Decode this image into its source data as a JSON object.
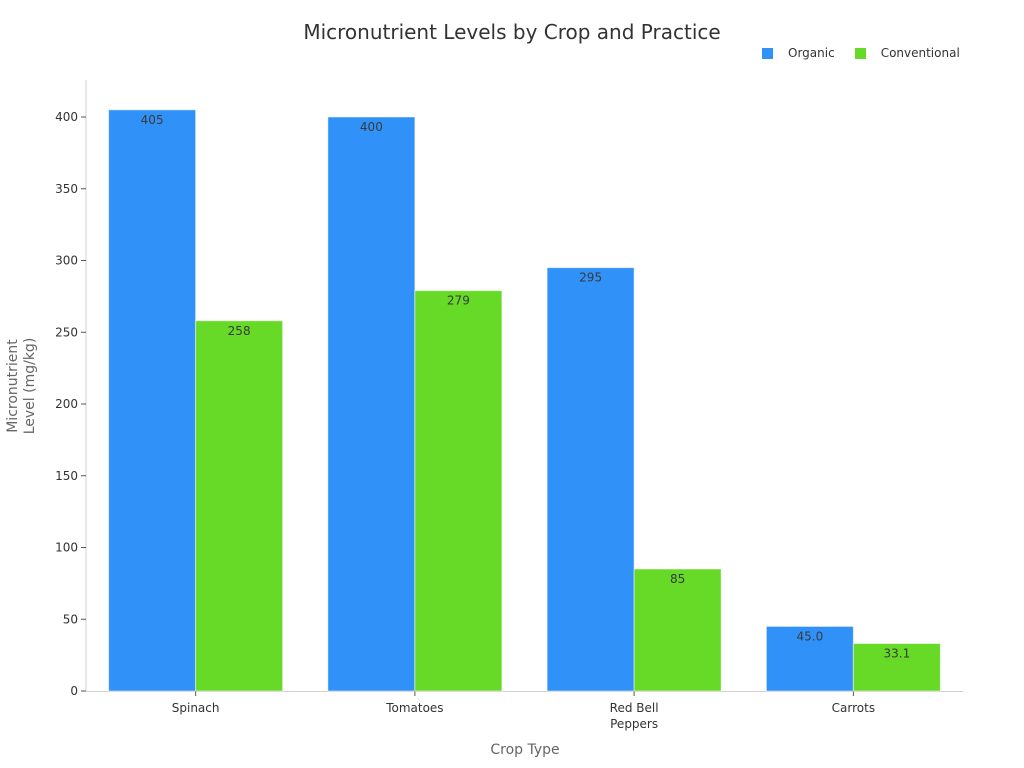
{
  "chart_data": {
    "type": "bar",
    "title": "Micronutrient Levels by Crop and Practice",
    "xlabel": "Crop Type",
    "ylabel": "Micronutrient Level (mg/kg)",
    "ylabel_lines": [
      "Micronutrient",
      "Level (mg/kg)"
    ],
    "categories": [
      "Spinach",
      "Tomatoes",
      "Red Bell Peppers",
      "Carrots"
    ],
    "category_label_lines": [
      [
        "Spinach"
      ],
      [
        "Tomatoes"
      ],
      [
        "Red Bell",
        "Peppers"
      ],
      [
        "Carrots"
      ]
    ],
    "series": [
      {
        "name": "Organic",
        "color": "#3091f9",
        "values": [
          405,
          400,
          295,
          45.0
        ],
        "labels": [
          "405",
          "400",
          "295",
          "45.0"
        ]
      },
      {
        "name": "Conventional",
        "color": "#66da26",
        "values": [
          258,
          279,
          85,
          33.1
        ],
        "labels": [
          "258",
          "279",
          "85",
          "33.1"
        ]
      }
    ],
    "ylim": [
      0,
      425
    ],
    "yticks": [
      0,
      50,
      100,
      150,
      200,
      250,
      300,
      350,
      400
    ],
    "grid": false,
    "legend_position": "top-right"
  }
}
